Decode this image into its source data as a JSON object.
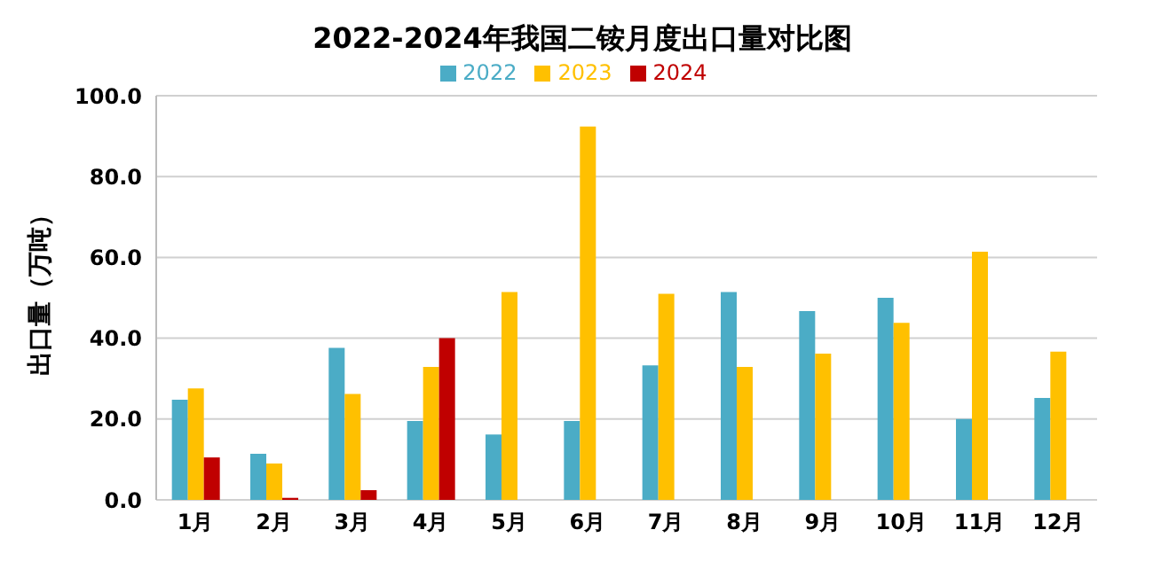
{
  "chart_data": {
    "type": "bar",
    "title": "2022-2024年我国二铵月度出口量对比图",
    "ylabel": "出口量（万吨）",
    "categories": [
      "1月",
      "2月",
      "3月",
      "4月",
      "5月",
      "6月",
      "7月",
      "8月",
      "9月",
      "10月",
      "11月",
      "12月"
    ],
    "series": [
      {
        "name": "2022",
        "color": "#4bacc6",
        "values": [
          24.8,
          11.4,
          37.6,
          19.5,
          16.2,
          19.5,
          33.3,
          51.4,
          46.7,
          50.0,
          20.0,
          25.2
        ]
      },
      {
        "name": "2023",
        "color": "#ffc000",
        "values": [
          27.6,
          9.0,
          26.2,
          32.9,
          51.4,
          92.4,
          51.0,
          32.9,
          36.2,
          43.8,
          61.4,
          36.7
        ]
      },
      {
        "name": "2024",
        "color": "#c00000",
        "values": [
          10.5,
          0.5,
          2.4,
          40.0,
          null,
          null,
          null,
          null,
          null,
          null,
          null,
          null
        ]
      }
    ],
    "ylim": [
      0,
      100
    ],
    "yticks": [
      {
        "value": 0,
        "label": "0.0"
      },
      {
        "value": 20,
        "label": "20.0"
      },
      {
        "value": 40,
        "label": "40.0"
      },
      {
        "value": 60,
        "label": "60.0"
      },
      {
        "value": 80,
        "label": "80.0"
      },
      {
        "value": 100,
        "label": "100.0"
      }
    ],
    "grid": "y",
    "legend": "top"
  }
}
